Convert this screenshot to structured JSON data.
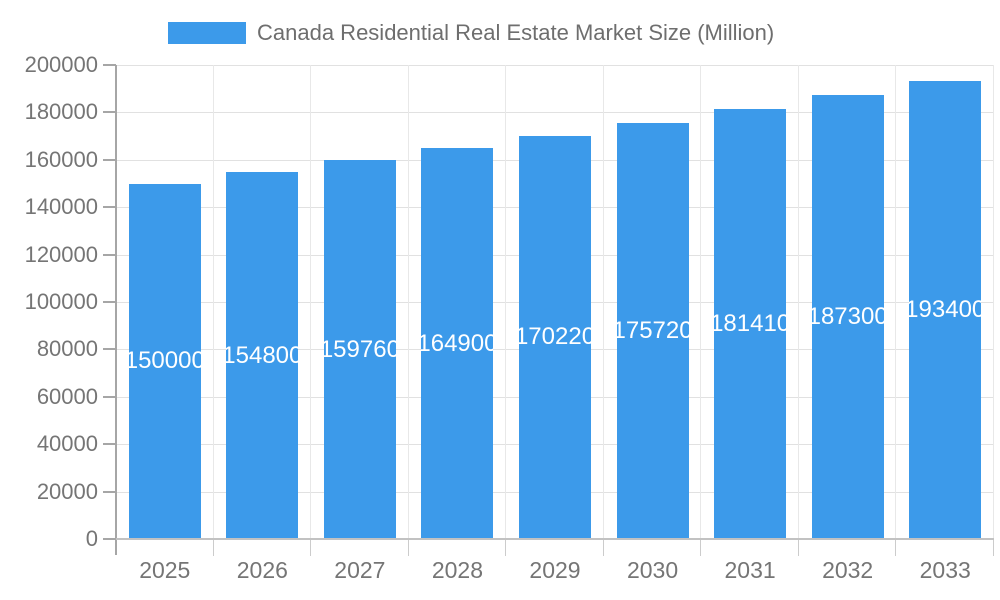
{
  "chart_data": {
    "type": "bar",
    "title": "Canada Residential Real Estate Market Size (Million)",
    "xlabel": "",
    "ylabel": "",
    "categories": [
      "2025",
      "2026",
      "2027",
      "2028",
      "2029",
      "2030",
      "2031",
      "2032",
      "2033"
    ],
    "values": [
      150000,
      154800,
      159760,
      164900,
      170220,
      175720,
      181410,
      187300,
      193400
    ],
    "bar_value_labels": [
      "150000",
      "154800",
      "159760",
      "164900",
      "170220",
      "175720",
      "181410",
      "187300",
      "193400"
    ],
    "ylim": [
      0,
      200000
    ],
    "yticks": [
      0,
      20000,
      40000,
      60000,
      80000,
      100000,
      120000,
      140000,
      160000,
      180000,
      200000
    ],
    "ytick_labels": [
      "0",
      "20000",
      "40000",
      "60000",
      "80000",
      "100000",
      "120000",
      "140000",
      "160000",
      "180000",
      "200000"
    ],
    "grid": true,
    "legend_position": "top",
    "colors": {
      "bar": "#3c9aea",
      "bar_label_text": "#ffffff",
      "title_text": "#6e6e6e",
      "axis_label_text": "#757575",
      "horizontal_gridline": "#e1e1e1",
      "vertical_gridline": "#e8e8e8",
      "y_axis_line": "#a6a6a6",
      "x_axis_line": "#c2c2c2",
      "background": "#ffffff"
    }
  }
}
